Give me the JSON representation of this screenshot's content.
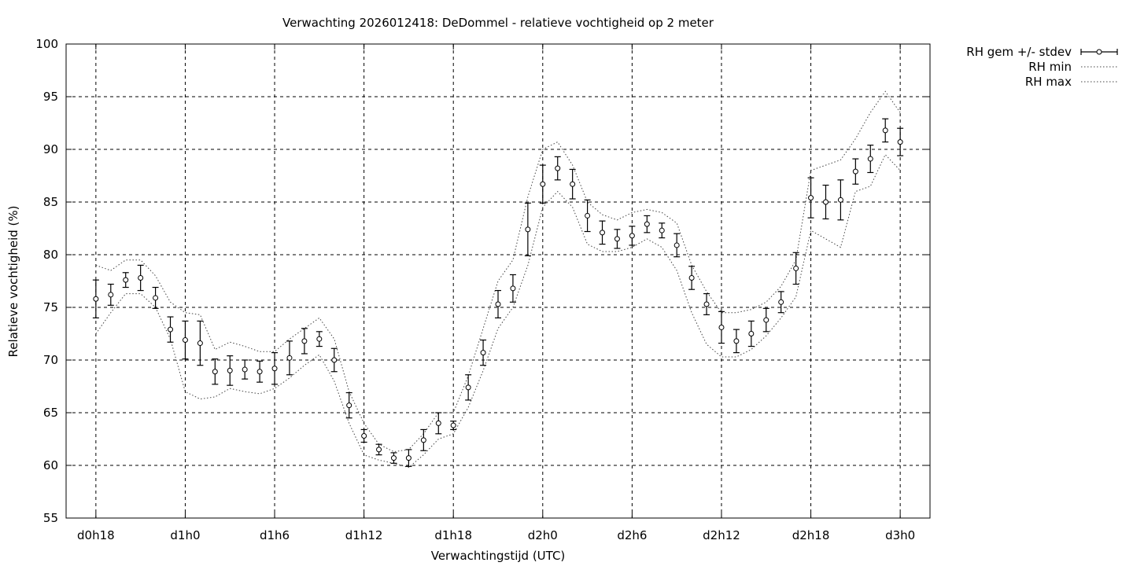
{
  "chart_data": {
    "type": "line",
    "title": "Verwachting 2026012418: DeDommel - relatieve vochtigheid op 2 meter",
    "xlabel": "Verwachtingstijd (UTC)",
    "ylabel": "Relatieve vochtigheid (%)",
    "xlim": [
      -2,
      56
    ],
    "ylim": [
      55,
      100
    ],
    "grid": true,
    "legend_position": "outside-top-right",
    "x_ticks": [
      {
        "value": 0,
        "label": "d0h18"
      },
      {
        "value": 6,
        "label": "d1h0"
      },
      {
        "value": 12,
        "label": "d1h6"
      },
      {
        "value": 18,
        "label": "d1h12"
      },
      {
        "value": 24,
        "label": "d1h18"
      },
      {
        "value": 30,
        "label": "d2h0"
      },
      {
        "value": 36,
        "label": "d2h6"
      },
      {
        "value": 42,
        "label": "d2h12"
      },
      {
        "value": 48,
        "label": "d2h18"
      },
      {
        "value": 54,
        "label": "d3h0"
      }
    ],
    "y_ticks": [
      55,
      60,
      65,
      70,
      75,
      80,
      85,
      90,
      95,
      100
    ],
    "x": [
      0,
      1,
      2,
      3,
      4,
      5,
      6,
      7,
      8,
      9,
      10,
      11,
      12,
      13,
      14,
      15,
      16,
      17,
      18,
      19,
      20,
      21,
      22,
      23,
      24,
      25,
      26,
      27,
      28,
      29,
      30,
      31,
      32,
      33,
      34,
      35,
      36,
      37,
      38,
      39,
      40,
      41,
      42,
      43,
      44,
      45,
      46,
      47,
      48,
      49,
      50,
      51,
      52,
      53,
      54
    ],
    "series": [
      {
        "name": "RH gem +/- stdev",
        "style": "points-errorbars",
        "values": [
          75.8,
          76.2,
          77.6,
          77.8,
          75.9,
          72.9,
          71.9,
          71.6,
          68.9,
          69.0,
          69.1,
          68.9,
          69.2,
          70.2,
          71.8,
          72.0,
          70.0,
          65.7,
          62.8,
          61.5,
          60.7,
          60.7,
          62.4,
          64.0,
          63.8,
          67.4,
          70.7,
          75.3,
          76.8,
          82.4,
          86.7,
          88.2,
          86.7,
          83.7,
          82.1,
          81.5,
          81.8,
          82.9,
          82.3,
          80.9,
          77.8,
          75.3,
          73.1,
          71.8,
          72.5,
          73.8,
          75.5,
          78.7,
          85.4,
          85.0,
          85.2,
          87.9,
          89.1,
          91.8,
          90.7
        ],
        "stdev": [
          1.8,
          1.0,
          0.7,
          1.2,
          1.0,
          1.2,
          1.8,
          2.1,
          1.2,
          1.4,
          0.9,
          1.0,
          1.5,
          1.6,
          1.2,
          0.7,
          1.1,
          1.2,
          0.6,
          0.5,
          0.5,
          0.8,
          1.0,
          1.0,
          0.4,
          1.2,
          1.2,
          1.3,
          1.3,
          2.5,
          1.8,
          1.1,
          1.4,
          1.5,
          1.1,
          0.9,
          0.9,
          0.8,
          0.7,
          1.1,
          1.1,
          1.0,
          1.5,
          1.1,
          1.2,
          1.1,
          1.0,
          1.5,
          1.9,
          1.6,
          1.9,
          1.2,
          1.3,
          1.1,
          1.3
        ]
      },
      {
        "name": "RH min",
        "style": "dotted",
        "values": [
          72.5,
          74.5,
          76.3,
          76.3,
          75.0,
          72.0,
          67.0,
          66.3,
          66.5,
          67.3,
          67.0,
          66.8,
          67.3,
          68.3,
          69.5,
          70.5,
          68.0,
          64.0,
          61.0,
          60.5,
          60.2,
          59.8,
          61.0,
          62.5,
          63.0,
          65.5,
          69.0,
          73.0,
          75.0,
          79.0,
          84.5,
          86.0,
          84.5,
          81.0,
          80.3,
          80.3,
          80.7,
          81.5,
          80.7,
          78.5,
          74.5,
          71.5,
          70.3,
          70.3,
          71.0,
          72.3,
          74.0,
          76.0,
          82.3,
          81.5,
          80.7,
          86.0,
          86.5,
          89.5,
          88.0
        ]
      },
      {
        "name": "RH max",
        "style": "dotted",
        "values": [
          79.0,
          78.5,
          79.5,
          79.5,
          78.0,
          75.5,
          74.5,
          74.3,
          71.0,
          71.7,
          71.3,
          70.8,
          70.8,
          72.0,
          73.0,
          74.0,
          72.0,
          67.0,
          64.0,
          62.0,
          61.3,
          61.5,
          63.0,
          65.0,
          65.0,
          68.5,
          73.0,
          77.5,
          79.5,
          85.5,
          90.0,
          90.7,
          88.5,
          85.0,
          83.8,
          83.3,
          84.0,
          84.3,
          84.0,
          83.0,
          79.0,
          76.5,
          74.5,
          74.5,
          74.8,
          75.5,
          77.0,
          79.5,
          88.0,
          88.5,
          89.0,
          91.0,
          93.5,
          95.5,
          93.5
        ]
      }
    ]
  }
}
